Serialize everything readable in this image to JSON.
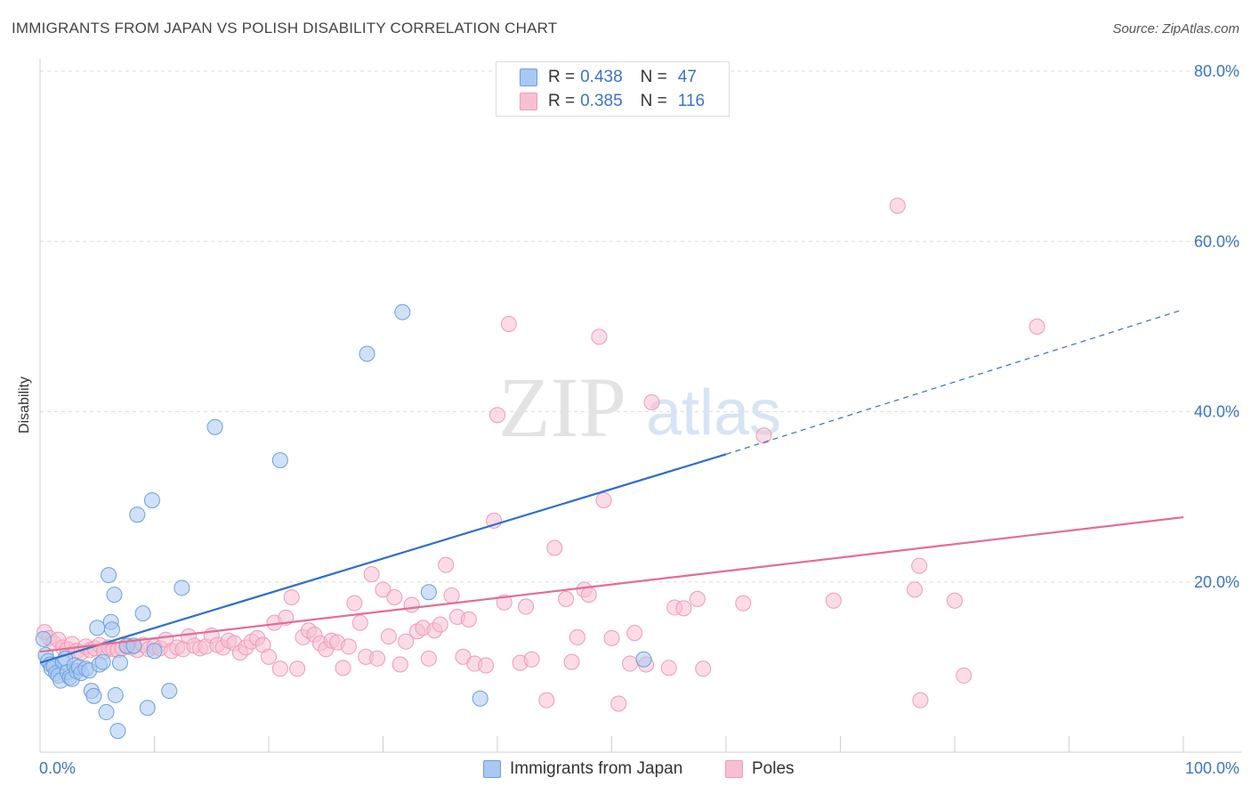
{
  "title": "IMMIGRANTS FROM JAPAN VS POLISH DISABILITY CORRELATION CHART",
  "source": "Source: ZipAtlas.com",
  "watermark": {
    "zip": "ZIP",
    "atlas": "atlas"
  },
  "legend": {
    "r_label": "R =",
    "n_label": "N =",
    "rows": [
      {
        "r": "0.438",
        "n": "47",
        "color": "#3b73c4"
      },
      {
        "r": "0.385",
        "n": "116",
        "color": "#e87ea1"
      }
    ]
  },
  "bottom_legend": [
    {
      "label": "Immigrants from Japan"
    },
    {
      "label": "Poles"
    }
  ],
  "colors": {
    "blue_fill": "#a9c8f0",
    "blue_stroke": "#6a9fdc",
    "blue_line": "#2d6fcc",
    "pink_fill": "#f7c0d1",
    "pink_stroke": "#ee9ab6",
    "pink_line": "#e56b95",
    "tick_text": "#3b73c4",
    "grid": "#dddddd"
  },
  "chart_data": {
    "type": "scatter",
    "title": "IMMIGRANTS FROM JAPAN VS POLISH DISABILITY CORRELATION CHART",
    "xlabel": "",
    "ylabel": "Disability",
    "xlim": [
      0,
      100
    ],
    "ylim": [
      0,
      80
    ],
    "x_tick_labels": [
      "0.0%",
      "100.0%"
    ],
    "y_ticks": [
      20,
      40,
      60,
      80
    ],
    "y_tick_labels": [
      "20.0%",
      "40.0%",
      "60.0%",
      "80.0%"
    ],
    "grid": true,
    "legend_position": "top-center",
    "series": [
      {
        "name": "Immigrants from Japan",
        "r": 0.438,
        "n": 47,
        "trend": {
          "x0": 0,
          "y0": 10.5,
          "x1": 60,
          "y1": 35.0,
          "dashed_to_x": 100,
          "dashed_to_y": 52.0
        },
        "points": [
          [
            0.3,
            13.3
          ],
          [
            0.5,
            11.4
          ],
          [
            0.7,
            10.7
          ],
          [
            0.9,
            10.3
          ],
          [
            1.0,
            9.8
          ],
          [
            1.2,
            10.1
          ],
          [
            1.4,
            9.3
          ],
          [
            1.6,
            9.0
          ],
          [
            1.8,
            8.4
          ],
          [
            2.0,
            10.6
          ],
          [
            2.2,
            11.0
          ],
          [
            2.4,
            9.4
          ],
          [
            2.6,
            8.8
          ],
          [
            2.8,
            8.6
          ],
          [
            3.0,
            10.2
          ],
          [
            3.2,
            9.5
          ],
          [
            3.4,
            10.0
          ],
          [
            3.6,
            9.3
          ],
          [
            4.0,
            9.8
          ],
          [
            4.3,
            9.6
          ],
          [
            4.5,
            7.2
          ],
          [
            4.7,
            6.6
          ],
          [
            5.0,
            14.6
          ],
          [
            5.2,
            10.3
          ],
          [
            5.5,
            10.6
          ],
          [
            5.8,
            4.7
          ],
          [
            6.0,
            20.8
          ],
          [
            6.2,
            15.3
          ],
          [
            6.3,
            14.4
          ],
          [
            6.5,
            18.5
          ],
          [
            6.6,
            6.7
          ],
          [
            6.8,
            2.5
          ],
          [
            7.0,
            10.5
          ],
          [
            7.6,
            12.5
          ],
          [
            8.2,
            12.5
          ],
          [
            8.5,
            27.9
          ],
          [
            9.0,
            16.3
          ],
          [
            9.4,
            5.2
          ],
          [
            9.8,
            29.6
          ],
          [
            10.0,
            11.9
          ],
          [
            11.3,
            7.2
          ],
          [
            12.4,
            19.3
          ],
          [
            15.3,
            38.2
          ],
          [
            21.0,
            34.3
          ],
          [
            28.6,
            46.8
          ],
          [
            31.7,
            51.7
          ],
          [
            34.0,
            18.8
          ],
          [
            38.5,
            6.3
          ],
          [
            52.8,
            10.9
          ]
        ]
      },
      {
        "name": "Poles",
        "r": 0.385,
        "n": 116,
        "trend": {
          "x0": 0,
          "y0": 11.8,
          "x1": 100,
          "y1": 27.6
        },
        "points": [
          [
            0.4,
            14.1
          ],
          [
            0.8,
            13.4
          ],
          [
            1.2,
            12.8
          ],
          [
            1.6,
            13.2
          ],
          [
            2.0,
            12.3
          ],
          [
            2.4,
            12.1
          ],
          [
            2.8,
            12.7
          ],
          [
            3.2,
            11.9
          ],
          [
            3.6,
            11.7
          ],
          [
            4.0,
            12.4
          ],
          [
            4.4,
            12.0
          ],
          [
            4.8,
            12.2
          ],
          [
            5.2,
            12.6
          ],
          [
            5.6,
            11.8
          ],
          [
            6.0,
            12.3
          ],
          [
            6.4,
            12.1
          ],
          [
            6.8,
            12.0
          ],
          [
            7.2,
            12.2
          ],
          [
            7.6,
            12.4
          ],
          [
            8.0,
            12.3
          ],
          [
            8.5,
            12.0
          ],
          [
            9.0,
            12.6
          ],
          [
            9.5,
            12.1
          ],
          [
            10.0,
            12.4
          ],
          [
            10.5,
            12.2
          ],
          [
            11.0,
            13.2
          ],
          [
            11.5,
            11.9
          ],
          [
            12.0,
            12.3
          ],
          [
            12.5,
            12.1
          ],
          [
            13.0,
            13.6
          ],
          [
            13.5,
            12.5
          ],
          [
            14.0,
            12.2
          ],
          [
            14.5,
            12.4
          ],
          [
            15.0,
            13.7
          ],
          [
            15.5,
            12.6
          ],
          [
            16.0,
            12.3
          ],
          [
            16.5,
            13.1
          ],
          [
            17.0,
            12.8
          ],
          [
            17.5,
            11.7
          ],
          [
            18.0,
            12.3
          ],
          [
            18.5,
            13.0
          ],
          [
            19.0,
            13.4
          ],
          [
            19.5,
            12.6
          ],
          [
            20.0,
            11.2
          ],
          [
            20.5,
            15.2
          ],
          [
            21.0,
            9.8
          ],
          [
            21.5,
            15.8
          ],
          [
            22.0,
            18.2
          ],
          [
            22.5,
            9.8
          ],
          [
            23.0,
            13.5
          ],
          [
            23.5,
            14.3
          ],
          [
            24.0,
            13.8
          ],
          [
            24.5,
            12.8
          ],
          [
            25.0,
            12.1
          ],
          [
            25.5,
            13.1
          ],
          [
            26.0,
            12.9
          ],
          [
            26.5,
            9.9
          ],
          [
            27.0,
            12.4
          ],
          [
            27.5,
            17.5
          ],
          [
            28.0,
            15.2
          ],
          [
            28.5,
            11.2
          ],
          [
            29.0,
            20.9
          ],
          [
            29.5,
            11.0
          ],
          [
            30.0,
            19.1
          ],
          [
            30.5,
            13.6
          ],
          [
            31.0,
            18.2
          ],
          [
            31.5,
            10.3
          ],
          [
            32.0,
            13.0
          ],
          [
            32.5,
            17.3
          ],
          [
            33.0,
            14.2
          ],
          [
            33.5,
            14.6
          ],
          [
            34.0,
            11.0
          ],
          [
            34.5,
            14.3
          ],
          [
            35.0,
            15.0
          ],
          [
            35.5,
            22.0
          ],
          [
            36.0,
            18.4
          ],
          [
            36.5,
            15.9
          ],
          [
            37.0,
            11.2
          ],
          [
            37.5,
            15.6
          ],
          [
            38.0,
            10.4
          ],
          [
            39.0,
            10.2
          ],
          [
            39.7,
            27.2
          ],
          [
            40.0,
            39.6
          ],
          [
            40.6,
            17.6
          ],
          [
            41.0,
            50.3
          ],
          [
            42.0,
            10.5
          ],
          [
            42.5,
            17.1
          ],
          [
            43.0,
            10.9
          ],
          [
            44.3,
            6.1
          ],
          [
            45.0,
            24.0
          ],
          [
            46.0,
            18.0
          ],
          [
            46.5,
            10.6
          ],
          [
            47.0,
            13.5
          ],
          [
            47.6,
            19.1
          ],
          [
            48.0,
            18.5
          ],
          [
            48.9,
            48.8
          ],
          [
            49.3,
            29.6
          ],
          [
            50.0,
            13.4
          ],
          [
            50.6,
            5.7
          ],
          [
            51.6,
            10.4
          ],
          [
            52.0,
            14.0
          ],
          [
            53.0,
            10.3
          ],
          [
            53.5,
            41.1
          ],
          [
            55.0,
            9.9
          ],
          [
            55.5,
            17.0
          ],
          [
            56.3,
            16.9
          ],
          [
            57.5,
            18.0
          ],
          [
            58.0,
            9.8
          ],
          [
            61.5,
            17.5
          ],
          [
            63.3,
            37.2
          ],
          [
            69.4,
            17.8
          ],
          [
            75.0,
            64.2
          ],
          [
            76.5,
            19.1
          ],
          [
            76.9,
            21.9
          ],
          [
            77.0,
            6.1
          ],
          [
            80.0,
            17.8
          ],
          [
            80.8,
            9.0
          ],
          [
            87.2,
            50.0
          ]
        ]
      }
    ]
  }
}
